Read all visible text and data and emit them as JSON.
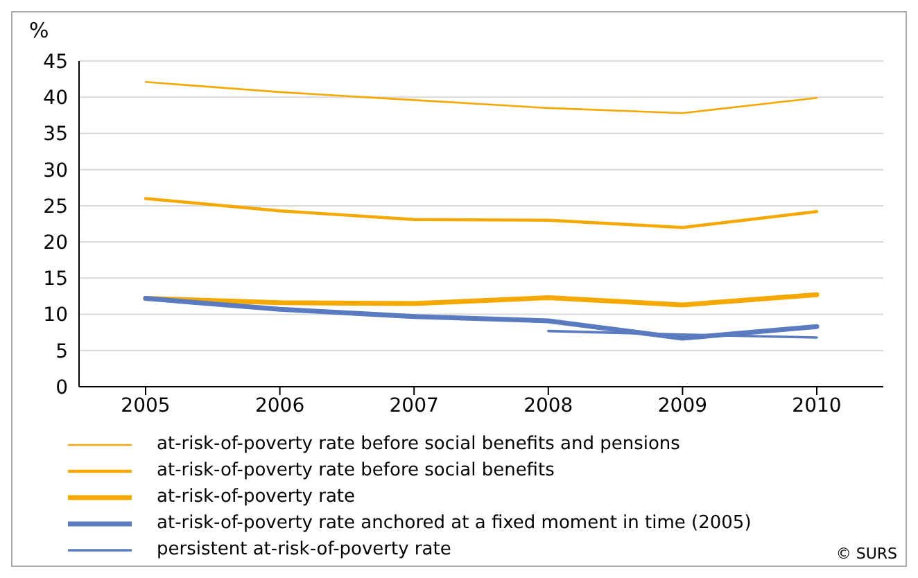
{
  "chart_data": {
    "type": "line",
    "ylabel": "%",
    "categories": [
      "2005",
      "2006",
      "2007",
      "2008",
      "2009",
      "2010"
    ],
    "series": [
      {
        "name": "at-risk-of-poverty rate  before social benefits and pensions",
        "color": "#f5a800",
        "values": [
          42.1,
          40.7,
          39.6,
          38.5,
          37.8,
          39.9
        ]
      },
      {
        "name": "at-risk-of-poverty rate  before social benefits",
        "color": "#f5a800",
        "values": [
          26.0,
          24.3,
          23.1,
          23.0,
          22.0,
          24.2
        ]
      },
      {
        "name": "at-risk-of-poverty rate",
        "color": "#f5a800",
        "values": [
          12.2,
          11.6,
          11.5,
          12.3,
          11.3,
          12.7
        ]
      },
      {
        "name": "at-risk-of-poverty rate anchored at a fixed moment in time (2005)",
        "color": "#5b7bc0",
        "values": [
          12.2,
          10.7,
          9.7,
          9.1,
          6.7,
          8.3
        ]
      },
      {
        "name": "persistent at-risk-of-poverty rate",
        "color": "#5b7bc0",
        "values": [
          null,
          null,
          null,
          7.7,
          7.2,
          6.8
        ]
      }
    ],
    "ylim": [
      0,
      45
    ],
    "yticks": [
      0,
      5,
      10,
      15,
      20,
      25,
      30,
      35,
      40,
      45
    ],
    "grid": "y",
    "legend": "bottom",
    "marker": "none",
    "line_style": "solid",
    "annotations": [
      "© SURS"
    ]
  }
}
